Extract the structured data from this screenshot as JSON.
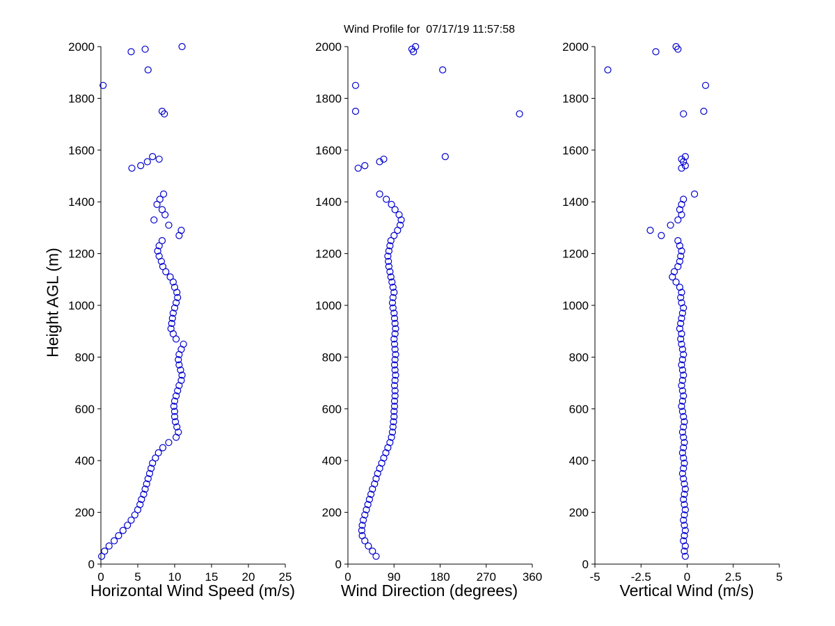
{
  "title": "Wind Profile for  07/17/19 11:57:58",
  "ylabel": "Height AGL (m)",
  "marker_color": "#0000cc",
  "axis_color": "#000000",
  "heights": [
    30,
    50,
    70,
    90,
    110,
    130,
    150,
    170,
    190,
    210,
    230,
    250,
    270,
    290,
    310,
    330,
    350,
    370,
    390,
    410,
    430,
    450,
    470,
    490,
    510,
    530,
    550,
    570,
    590,
    610,
    630,
    650,
    670,
    690,
    710,
    730,
    750,
    770,
    790,
    810,
    830,
    850,
    870,
    890,
    910,
    930,
    950,
    970,
    990,
    1010,
    1030,
    1050,
    1070,
    1090,
    1110,
    1130,
    1150,
    1170,
    1190,
    1210,
    1230,
    1250,
    1270,
    1290,
    1310,
    1330,
    1350,
    1370,
    1390,
    1410,
    1430,
    1530,
    1540,
    1555,
    1565,
    1575,
    1740,
    1750,
    1850,
    1910,
    1980,
    1990,
    2000
  ],
  "chart_data": [
    {
      "type": "scatter",
      "xlabel": "Horizontal Wind Speed (m/s)",
      "ylabel": "Height AGL (m)",
      "xlim": [
        0,
        25
      ],
      "ylim": [
        0,
        2000
      ],
      "xticks": [
        0,
        5,
        10,
        15,
        20,
        25
      ],
      "yticks": [
        0,
        200,
        400,
        600,
        800,
        1000,
        1200,
        1400,
        1600,
        1800,
        2000
      ],
      "grid": false,
      "legend": "none",
      "values": [
        0.1,
        0.5,
        1.1,
        1.8,
        2.4,
        3.0,
        3.6,
        4.1,
        4.6,
        5.0,
        5.3,
        5.5,
        5.8,
        6.0,
        6.2,
        6.4,
        6.6,
        6.8,
        7.0,
        7.4,
        7.8,
        8.4,
        9.2,
        10.2,
        10.5,
        10.3,
        10.1,
        10.0,
        10.0,
        9.9,
        10.0,
        10.2,
        10.4,
        10.6,
        10.9,
        11.0,
        10.8,
        10.6,
        10.5,
        10.6,
        10.9,
        11.2,
        10.2,
        9.8,
        9.5,
        9.6,
        9.7,
        9.8,
        10.0,
        10.2,
        10.4,
        10.3,
        10.0,
        9.8,
        9.4,
        8.8,
        8.4,
        8.2,
        7.9,
        7.7,
        7.9,
        8.3,
        10.6,
        10.9,
        9.2,
        7.2,
        8.7,
        8.3,
        7.6,
        8.0,
        8.5,
        4.2,
        5.4,
        6.3,
        7.9,
        7.0,
        8.6,
        8.3,
        0.3,
        6.4,
        4.1,
        6.0,
        11.0
      ]
    },
    {
      "type": "scatter",
      "xlabel": "Wind Direction (degrees)",
      "ylabel": "Height AGL (m)",
      "xlim": [
        0,
        360
      ],
      "ylim": [
        0,
        2000
      ],
      "xticks": [
        0,
        90,
        180,
        270,
        360
      ],
      "yticks": [
        0,
        200,
        400,
        600,
        800,
        1000,
        1200,
        1400,
        1600,
        1800,
        2000
      ],
      "grid": false,
      "legend": "none",
      "values": [
        55,
        48,
        40,
        33,
        28,
        27,
        28,
        30,
        33,
        36,
        39,
        42,
        45,
        48,
        52,
        55,
        58,
        62,
        66,
        70,
        74,
        78,
        82,
        85,
        87,
        88,
        89,
        90,
        90,
        91,
        91,
        92,
        92,
        91,
        92,
        93,
        92,
        91,
        92,
        93,
        92,
        91,
        90,
        92,
        93,
        92,
        91,
        90,
        88,
        87,
        88,
        90,
        88,
        86,
        84,
        82,
        80,
        79,
        78,
        80,
        82,
        84,
        90,
        97,
        102,
        104,
        100,
        92,
        85,
        75,
        62,
        20,
        33,
        62,
        70,
        190,
        335,
        15,
        15,
        185,
        128,
        125,
        132
      ]
    },
    {
      "type": "scatter",
      "xlabel": "Vertical Wind (m/s)",
      "ylabel": "Height AGL (m)",
      "xlim": [
        -5,
        5
      ],
      "ylim": [
        0,
        2000
      ],
      "xticks": [
        -5,
        -2.5,
        0,
        2.5,
        5
      ],
      "yticks": [
        0,
        200,
        400,
        600,
        800,
        1000,
        1200,
        1400,
        1600,
        1800,
        2000
      ],
      "grid": false,
      "legend": "none",
      "values": [
        -0.1,
        -0.15,
        -0.1,
        -0.2,
        -0.15,
        -0.1,
        -0.15,
        -0.2,
        -0.15,
        -0.1,
        -0.15,
        -0.2,
        -0.15,
        -0.1,
        -0.15,
        -0.2,
        -0.25,
        -0.2,
        -0.15,
        -0.2,
        -0.25,
        -0.2,
        -0.15,
        -0.2,
        -0.25,
        -0.2,
        -0.15,
        -0.2,
        -0.25,
        -0.3,
        -0.25,
        -0.2,
        -0.25,
        -0.3,
        -0.25,
        -0.2,
        -0.25,
        -0.3,
        -0.25,
        -0.2,
        -0.25,
        -0.3,
        -0.35,
        -0.3,
        -0.4,
        -0.35,
        -0.3,
        -0.25,
        -0.2,
        -0.3,
        -0.35,
        -0.3,
        -0.4,
        -0.6,
        -0.8,
        -0.7,
        -0.5,
        -0.4,
        -0.35,
        -0.3,
        -0.4,
        -0.5,
        -1.4,
        -2.0,
        -0.9,
        -0.5,
        -0.3,
        -0.4,
        -0.3,
        -0.2,
        0.4,
        -0.3,
        -0.1,
        -0.2,
        -0.3,
        -0.1,
        -0.2,
        0.9,
        1.0,
        -4.3,
        -1.7,
        -0.5,
        -0.6
      ]
    }
  ]
}
